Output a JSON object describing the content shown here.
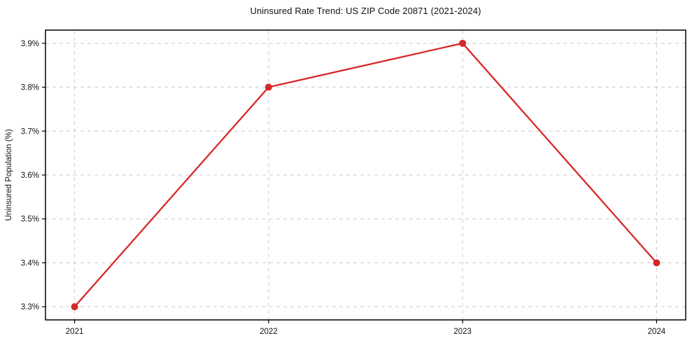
{
  "chart_data": {
    "type": "line",
    "title": "Uninsured Rate Trend: US ZIP Code 20871 (2021-2024)",
    "xlabel": "",
    "ylabel": "Uninsured Population (%)",
    "x": [
      2021,
      2022,
      2023,
      2024
    ],
    "x_labels": [
      "2021",
      "2022",
      "2023",
      "2024"
    ],
    "values": [
      3.3,
      3.8,
      3.9,
      3.4
    ],
    "ytick_values": [
      3.3,
      3.4,
      3.5,
      3.6,
      3.7,
      3.8,
      3.9
    ],
    "ytick_labels": [
      "3.3%",
      "3.4%",
      "3.5%",
      "3.6%",
      "3.7%",
      "3.8%",
      "3.9%"
    ],
    "ylim": [
      3.27,
      3.93
    ],
    "xlim": [
      2020.85,
      2024.15
    ],
    "grid": true,
    "grid_style": "dashed",
    "legend": "none",
    "colors": {
      "line": "#d62728",
      "marker": "#d62728",
      "grid": "#cccccc",
      "axis": "#000000",
      "text": "#111111",
      "background": "#ffffff"
    },
    "marker": "circle",
    "marker_radius": 5,
    "line_width": 2.3
  }
}
